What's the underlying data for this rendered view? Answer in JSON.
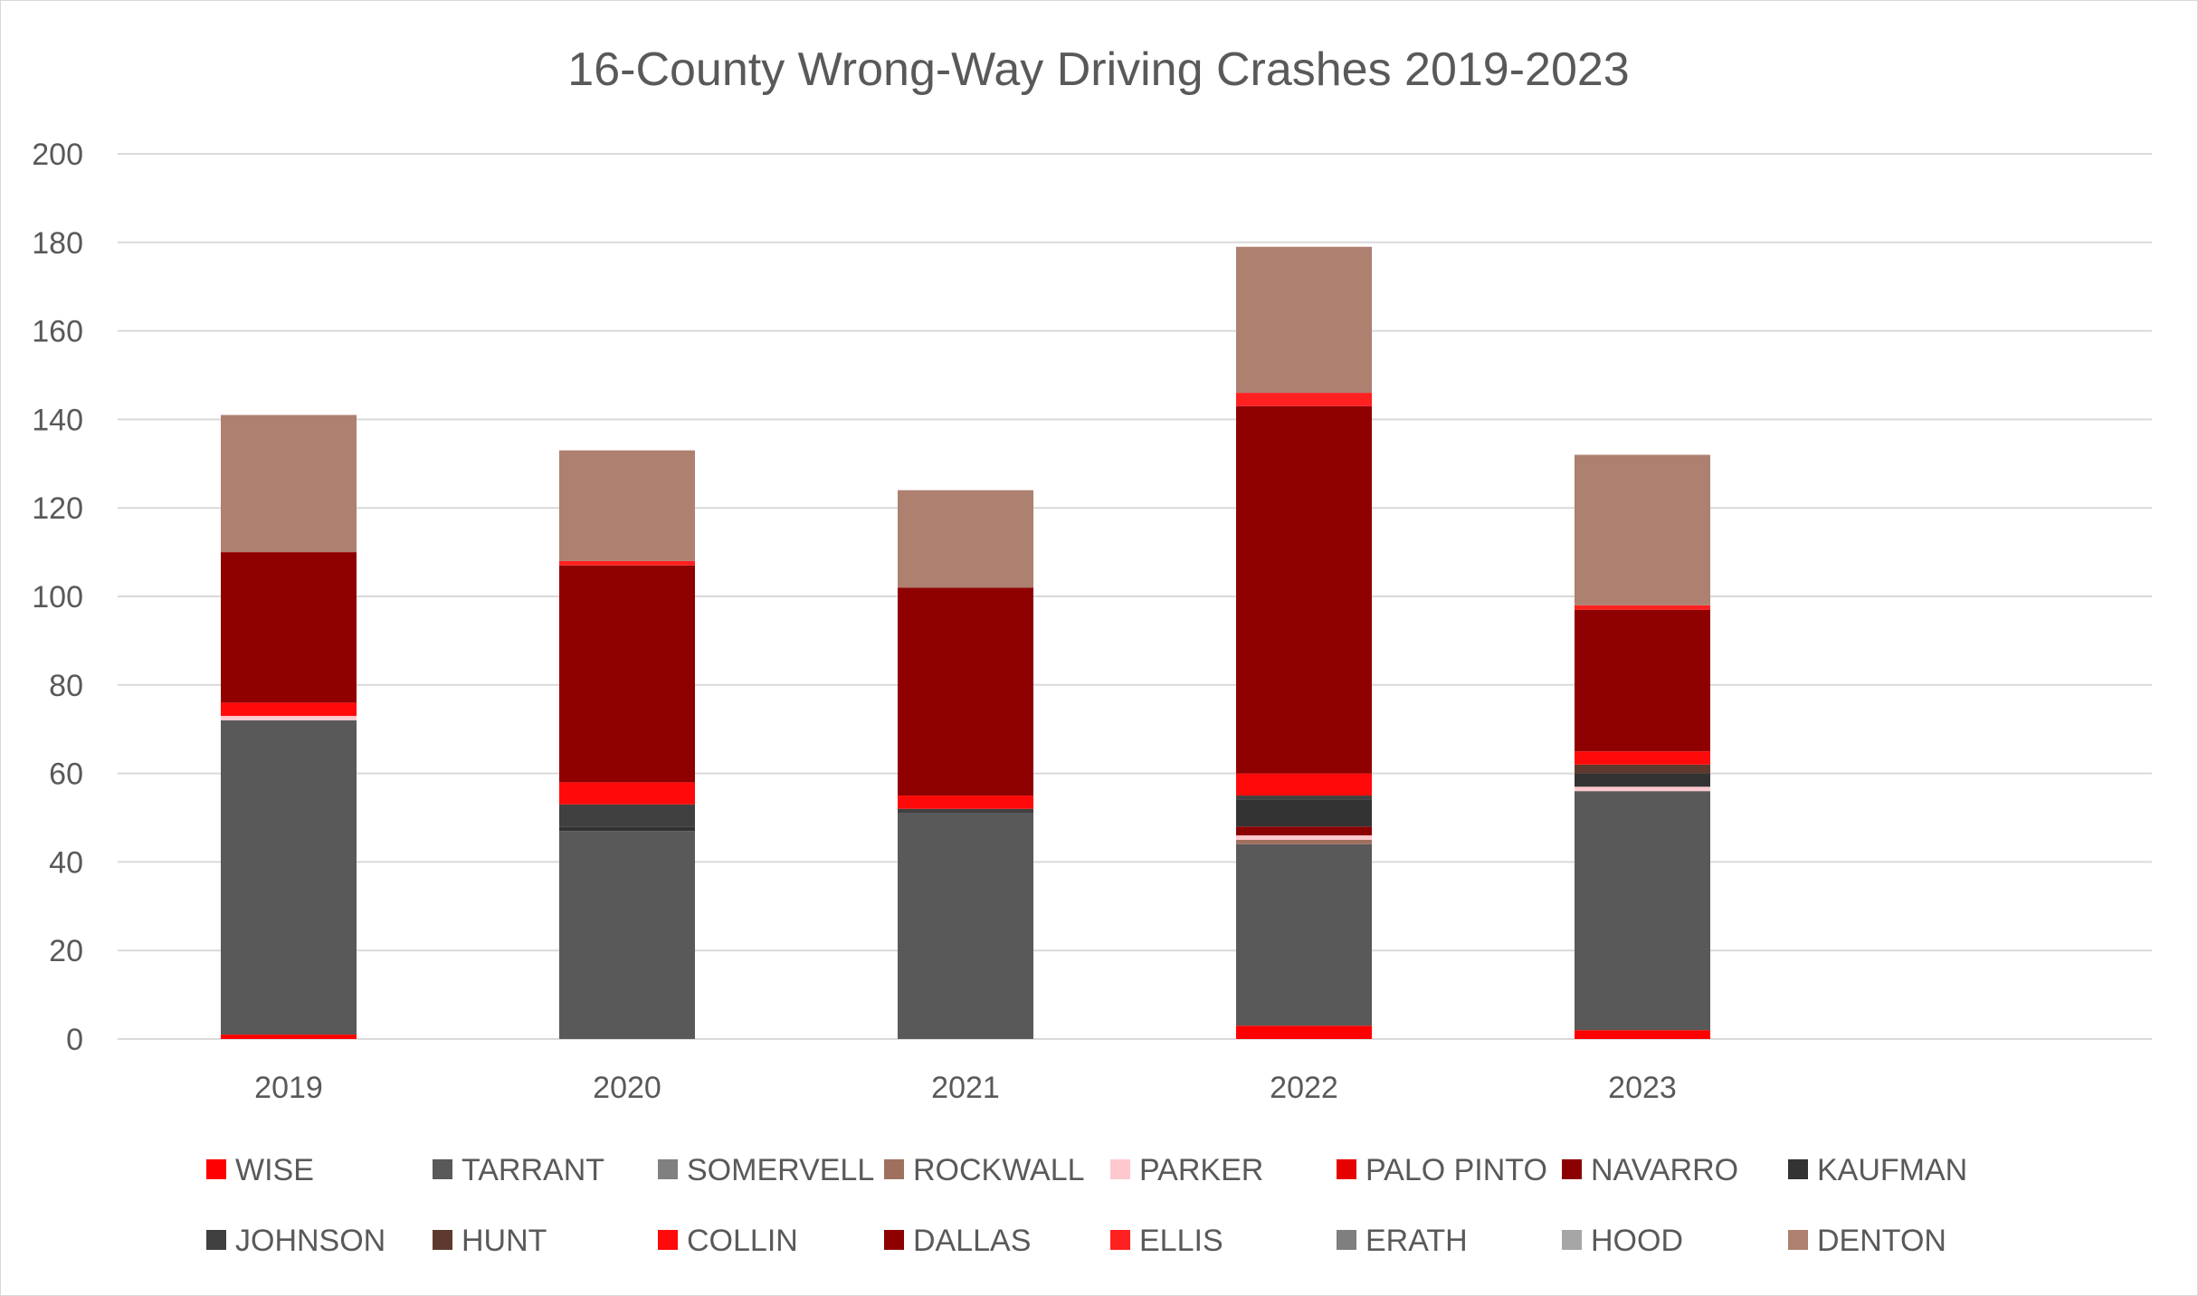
{
  "chart_data": {
    "type": "bar",
    "stacked": true,
    "title": "16-County Wrong-Way Driving Crashes 2019-2023",
    "xlabel": "",
    "ylabel": "",
    "ylim": [
      0,
      200
    ],
    "yticks": [
      0,
      20,
      40,
      60,
      80,
      100,
      120,
      140,
      160,
      180,
      200
    ],
    "grid": true,
    "legend_position": "bottom",
    "categories": [
      "2019",
      "2020",
      "2021",
      "2022",
      "2023"
    ],
    "series": [
      {
        "name": "WISE",
        "color": "#ff0000",
        "values": [
          1,
          0,
          0,
          3,
          2
        ]
      },
      {
        "name": "TARRANT",
        "color": "#595959",
        "values": [
          71,
          47,
          51,
          41,
          54
        ]
      },
      {
        "name": "SOMERVELL",
        "color": "#808080",
        "values": [
          0,
          0,
          0,
          0,
          0
        ]
      },
      {
        "name": "ROCKWALL",
        "color": "#a0705f",
        "values": [
          0,
          0,
          0,
          1,
          0
        ]
      },
      {
        "name": "PARKER",
        "color": "#ffc7ce",
        "values": [
          1,
          0,
          0,
          1,
          1
        ]
      },
      {
        "name": "PALO PINTO",
        "color": "#e60000",
        "values": [
          0,
          0,
          0,
          0,
          0
        ]
      },
      {
        "name": "NAVARRO",
        "color": "#8b0000",
        "values": [
          0,
          0,
          0,
          2,
          0
        ]
      },
      {
        "name": "KAUFMAN",
        "color": "#333333",
        "values": [
          0,
          1,
          0,
          6,
          3
        ]
      },
      {
        "name": "JOHNSON",
        "color": "#404040",
        "values": [
          0,
          5,
          1,
          1,
          0
        ]
      },
      {
        "name": "HUNT",
        "color": "#5e3a2e",
        "values": [
          0,
          0,
          0,
          0,
          2
        ]
      },
      {
        "name": "COLLIN",
        "color": "#ff0a0a",
        "values": [
          3,
          5,
          3,
          5,
          3
        ]
      },
      {
        "name": "DALLAS",
        "color": "#8f0000",
        "values": [
          34,
          49,
          47,
          83,
          32
        ]
      },
      {
        "name": "ELLIS",
        "color": "#ff2020",
        "values": [
          0,
          1,
          0,
          3,
          1
        ]
      },
      {
        "name": "ERATH",
        "color": "#7f7f7f",
        "values": [
          0,
          0,
          0,
          0,
          0
        ]
      },
      {
        "name": "HOOD",
        "color": "#a6a6a6",
        "values": [
          0,
          0,
          0,
          0,
          0
        ]
      },
      {
        "name": "DENTON",
        "color": "#ad8070",
        "values": [
          31,
          25,
          22,
          33,
          34
        ]
      }
    ]
  }
}
